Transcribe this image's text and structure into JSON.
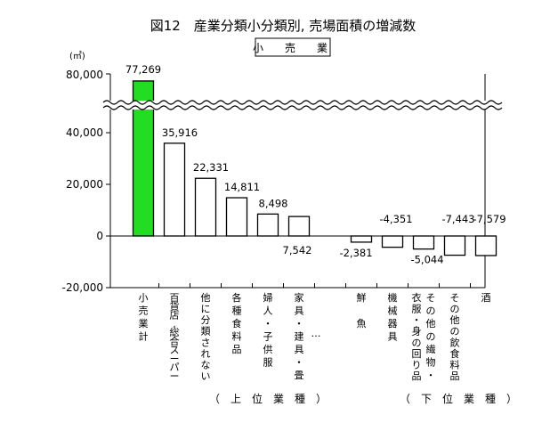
{
  "chart_data": {
    "type": "bar",
    "title": "図12　産業分類小分類別, 売場面積の増減数",
    "subtitle": "小　売　業",
    "unit": "(㎡)",
    "y_ticks_lower": [
      "-20,000",
      "0",
      "20,000",
      "40,000"
    ],
    "y_tick_upper": "80,000",
    "ylim": [
      -20000,
      80000
    ],
    "axis_break": {
      "from": 45000,
      "to": 75000
    },
    "ellipsis": "…",
    "groups": [
      {
        "label": "（　上　位　業　種　）",
        "range": [
          1,
          6
        ]
      },
      {
        "label": "（　下　位　業　種　）",
        "range": [
          7,
          11
        ]
      }
    ],
    "highlight_color": "#22dd22",
    "bar_color": "#ffffff",
    "categories": [
      "小売業計",
      "百貨店,総合スーパー",
      "他に分類されない",
      "各種食料品",
      "婦人・子供服",
      "家具・建具・畳",
      "鮮魚",
      "機械器具",
      "衣服・身の回り品その他の繊物・",
      "その他の飲食料品",
      "酒"
    ],
    "category_lines": [
      [
        "小売業計"
      ],
      [
        "百貨店,総合スーパー"
      ],
      [
        "他に分類されない"
      ],
      [
        "各種食料品"
      ],
      [
        "婦人・子供服"
      ],
      [
        "家具・建具・畳"
      ],
      [
        "鮮　魚"
      ],
      [
        "機械器具"
      ],
      [
        "衣服・身の回り品",
        "その他の繊物・"
      ],
      [
        "その他の飲食料品"
      ],
      [
        "酒"
      ]
    ],
    "values": [
      77269,
      35916,
      22331,
      14811,
      8498,
      7542,
      -2381,
      -4351,
      -5044,
      -7443,
      -7579
    ],
    "labels": [
      "77,269",
      "35,916",
      "22,331",
      "14,811",
      "8,498",
      "7,542",
      "-2,381",
      "-4,351",
      "-5,044",
      "-7,443",
      "-7,579"
    ]
  }
}
